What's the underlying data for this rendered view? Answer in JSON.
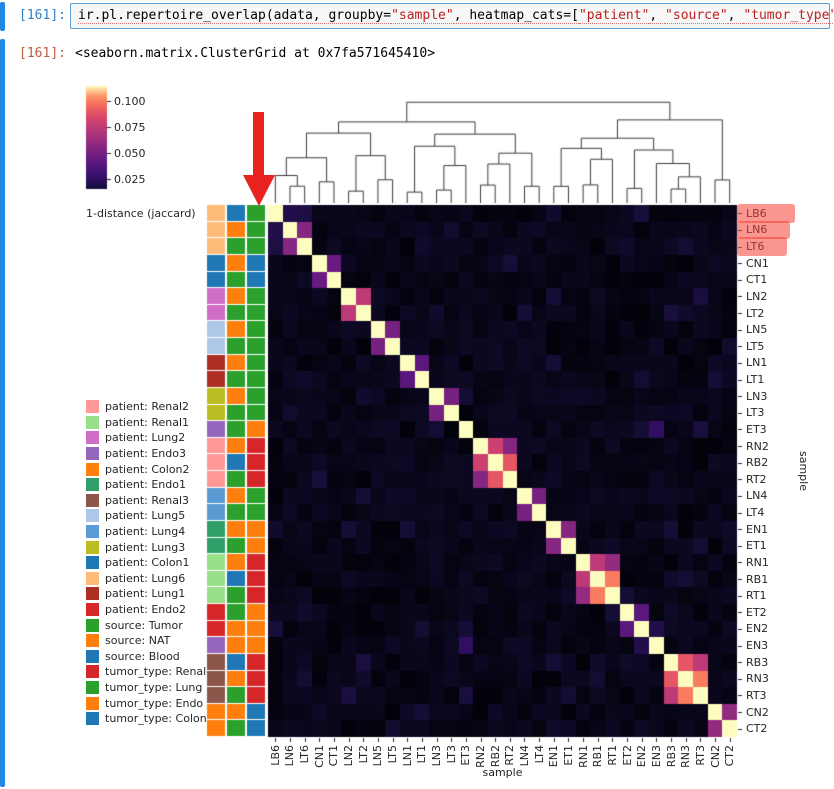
{
  "notebook": {
    "input_prompt": "[161]:",
    "output_prompt": "[161]:",
    "code_tokens": [
      {
        "text": "ir.pl.repertoire_overlap(adata, groupby=",
        "type": "plain"
      },
      {
        "text": "\"sample\"",
        "type": "string"
      },
      {
        "text": ", heatmap_cats=[",
        "type": "plain"
      },
      {
        "text": "\"patient\"",
        "type": "string"
      },
      {
        "text": ", ",
        "type": "plain"
      },
      {
        "text": "\"source\"",
        "type": "string"
      },
      {
        "text": ", ",
        "type": "plain"
      },
      {
        "text": "\"tumor_type\"",
        "type": "string"
      },
      {
        "text": "])",
        "type": "plain"
      }
    ],
    "output_text": "<seaborn.matrix.ClusterGrid at 0x7fa571645410>"
  },
  "colors": {
    "input_prompt": "#307fc1",
    "output_prompt": "#bf5b3d",
    "string_token": "#ba2121",
    "selection_bar": "#1e88e5",
    "annotation": "#e8221e"
  },
  "chart_data": {
    "type": "heatmap",
    "subtype": "clustermap",
    "title": "",
    "xlabel": "sample",
    "ylabel": "sample",
    "colorbar": {
      "label": "1-distance (jaccard)",
      "ticks": [
        "0.100",
        "0.075",
        "0.050",
        "0.025"
      ],
      "vmin": 0.015,
      "vmax": 0.115,
      "colormap": "magma"
    },
    "samples": [
      "LB6",
      "LN6",
      "LT6",
      "CN1",
      "CT1",
      "LN2",
      "LT2",
      "LN5",
      "LT5",
      "LN1",
      "LT1",
      "LN3",
      "LT3",
      "ET3",
      "RN2",
      "RB2",
      "RT2",
      "LN4",
      "LT4",
      "EN1",
      "ET1",
      "RN1",
      "RB1",
      "RT1",
      "ET2",
      "EN2",
      "EN3",
      "RB3",
      "RN3",
      "RT3",
      "CN2",
      "CT2"
    ],
    "diagonal_value": 0.115,
    "background_value": 0.005,
    "pairs": [
      [
        "LN6",
        "LT6",
        0.055
      ],
      [
        "LB6",
        "LN6",
        0.02
      ],
      [
        "LB6",
        "LT6",
        0.018
      ],
      [
        "CN1",
        "CT1",
        0.045
      ],
      [
        "LN2",
        "LT2",
        0.075
      ],
      [
        "LN5",
        "LT5",
        0.05
      ],
      [
        "LN1",
        "LT1",
        0.04
      ],
      [
        "LN3",
        "LT3",
        0.05
      ],
      [
        "LN3",
        "ET3",
        0.014
      ],
      [
        "LT2",
        "LN3",
        0.012
      ],
      [
        "RN2",
        "RB2",
        0.08
      ],
      [
        "RN2",
        "RT2",
        0.055
      ],
      [
        "RB2",
        "RT2",
        0.09
      ],
      [
        "LN4",
        "LT4",
        0.05
      ],
      [
        "EN1",
        "ET1",
        0.055
      ],
      [
        "RN1",
        "RB1",
        0.075
      ],
      [
        "RN1",
        "RT1",
        0.06
      ],
      [
        "RB1",
        "RT1",
        0.1
      ],
      [
        "ET2",
        "EN2",
        0.04
      ],
      [
        "EN2",
        "EN3",
        0.02
      ],
      [
        "EN2",
        "ET3",
        0.015
      ],
      [
        "EN3",
        "ET3",
        0.025
      ],
      [
        "RB3",
        "RN3",
        0.09
      ],
      [
        "RB3",
        "RT3",
        0.075
      ],
      [
        "RN3",
        "RT3",
        0.1
      ],
      [
        "CN2",
        "CT2",
        0.06
      ]
    ],
    "row_color_categories": [
      "patient",
      "source",
      "tumor_type"
    ],
    "legend": [
      {
        "label": "patient: Renal2",
        "color": "#ff9896"
      },
      {
        "label": "patient: Renal1",
        "color": "#98df8a"
      },
      {
        "label": "patient: Lung2",
        "color": "#cf6ec4"
      },
      {
        "label": "patient: Endo3",
        "color": "#9467bd"
      },
      {
        "label": "patient: Colon2",
        "color": "#ff7f0e"
      },
      {
        "label": "patient: Endo1",
        "color": "#2f9e68"
      },
      {
        "label": "patient: Renal3",
        "color": "#8c564b"
      },
      {
        "label": "patient: Lung5",
        "color": "#aec7e8"
      },
      {
        "label": "patient: Lung4",
        "color": "#5b9bd5"
      },
      {
        "label": "patient: Lung3",
        "color": "#bcbd22"
      },
      {
        "label": "patient: Colon1",
        "color": "#1f77b4"
      },
      {
        "label": "patient: Lung6",
        "color": "#ffbb78"
      },
      {
        "label": "patient: Lung1",
        "color": "#ad2f24"
      },
      {
        "label": "patient: Endo2",
        "color": "#d62728"
      },
      {
        "label": "source: Tumor",
        "color": "#2ca02c"
      },
      {
        "label": "source: NAT",
        "color": "#ff7f0e"
      },
      {
        "label": "source: Blood",
        "color": "#1f77b4"
      },
      {
        "label": "tumor_type: Renal",
        "color": "#d62728"
      },
      {
        "label": "tumor_type: Lung",
        "color": "#2ca02c"
      },
      {
        "label": "tumor_type: Endo",
        "color": "#ff7f0e"
      },
      {
        "label": "tumor_type: Colon",
        "color": "#1f77b4"
      }
    ],
    "dendrogram": [
      [
        [
          [
            [
              "LB6",
              [
                "LN6",
                "LT6"
              ]
            ],
            [
              "CN1",
              "CT1"
            ]
          ],
          [
            [
              "LN2",
              "LT2"
            ],
            [
              "LN5",
              "LT5"
            ]
          ]
        ],
        [
          [
            [
              "LN1",
              "LT1"
            ],
            [
              [
                "LN3",
                "LT3"
              ],
              "ET3"
            ]
          ],
          [
            [
              [
                "RN2",
                "RB2"
              ],
              "RT2"
            ],
            [
              "LN4",
              "LT4"
            ]
          ]
        ]
      ],
      [
        [
          [
            [
              "EN1",
              "ET1"
            ],
            [
              [
                "RN1",
                "RB1"
              ],
              "RT1"
            ]
          ],
          [
            [
              "ET2",
              "EN2"
            ],
            [
              "EN3",
              [
                [
                  "RB3",
                  "RN3"
                ],
                "RT3"
              ]
            ]
          ]
        ],
        [
          "CN2",
          "CT2"
        ]
      ]
    ]
  },
  "annotations": {
    "arrow": "red-arrow-pointing-down-at-row-colors",
    "highlighted_rows": [
      "LB6",
      "LN6",
      "LT6"
    ]
  }
}
